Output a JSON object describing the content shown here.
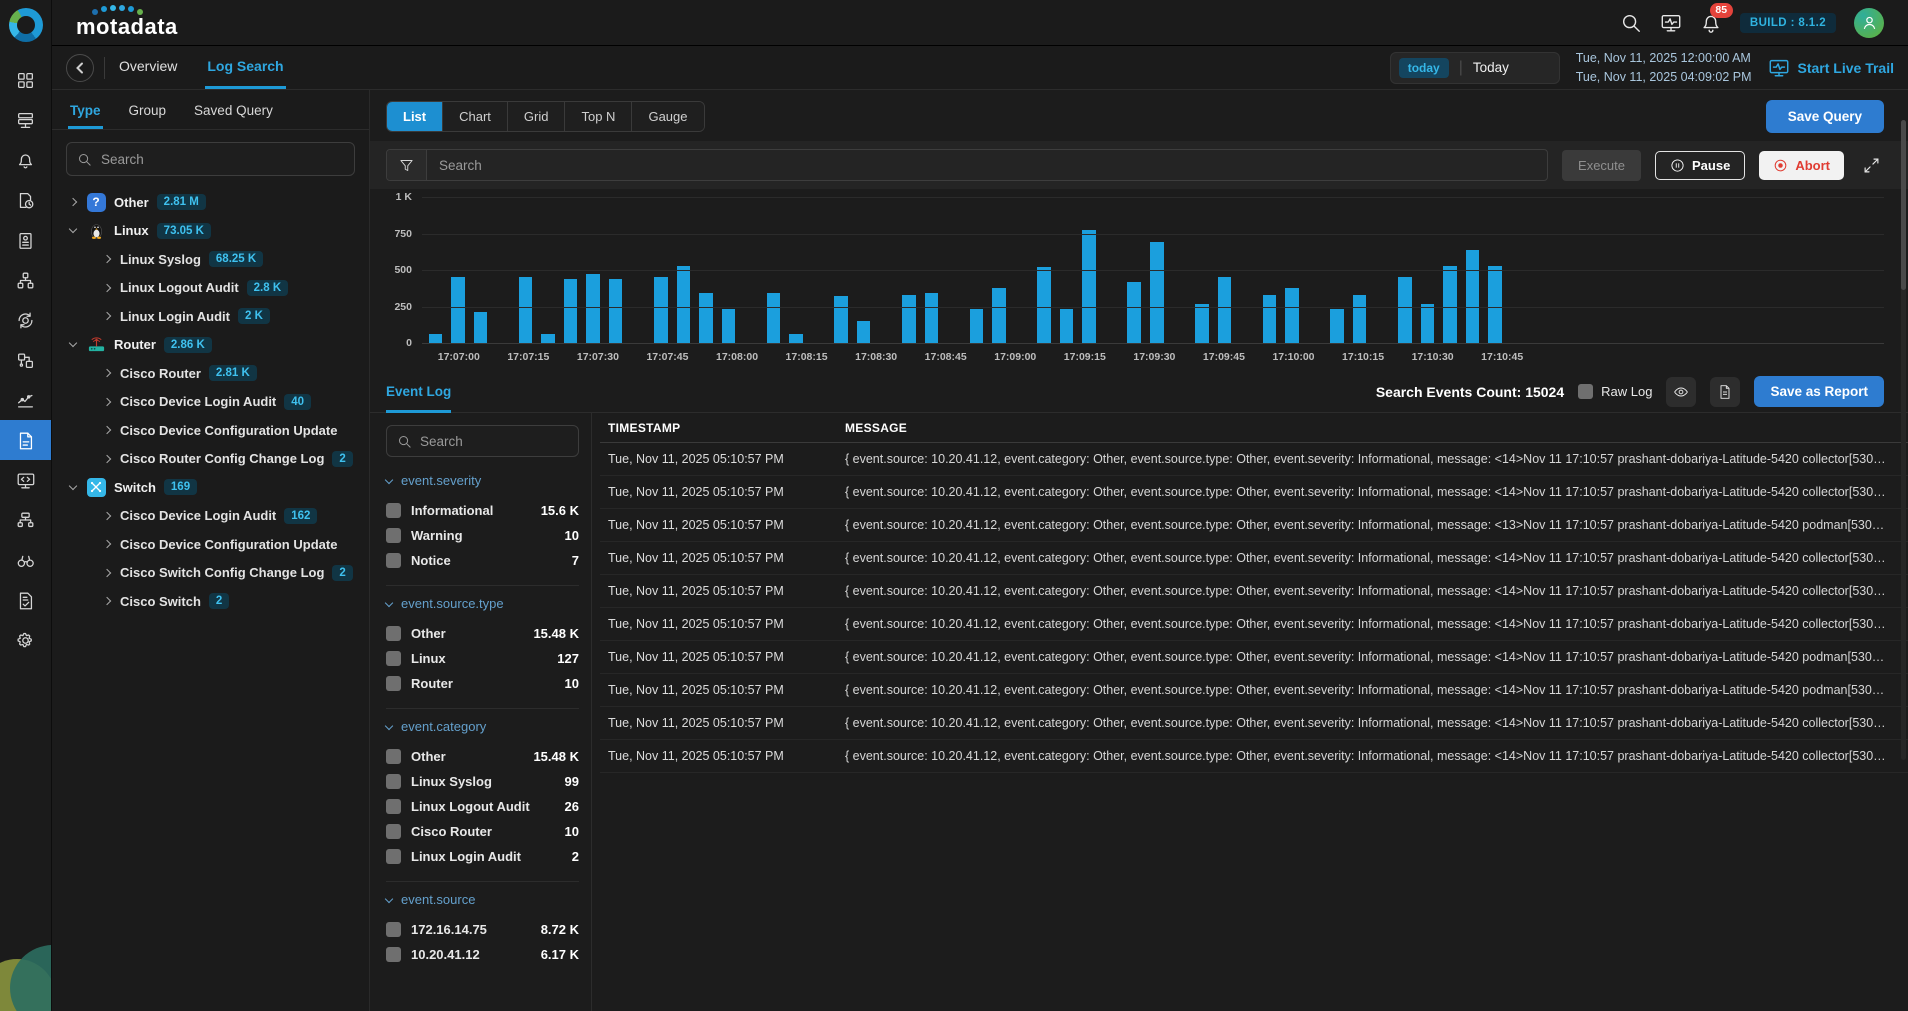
{
  "header": {
    "brand": "motadata",
    "notification_count": "85",
    "build_label": "BUILD : 8.1.2",
    "icons": [
      "search-icon",
      "monitor-pulse-icon",
      "bell-icon",
      "avatar"
    ]
  },
  "subheader": {
    "tabs": [
      {
        "label": "Overview",
        "active": false
      },
      {
        "label": "Log Search",
        "active": true
      }
    ],
    "time_chip": "today",
    "time_label": "Today",
    "date_from": "Tue, Nov 11, 2025 12:00:00 AM",
    "date_to": "Tue, Nov 11, 2025 04:09:02 PM",
    "live_trail_label": "Start Live Trail"
  },
  "sidebar": {
    "icons": [
      "dashboard",
      "infrastructure",
      "alerts",
      "scheduler",
      "reports",
      "topology",
      "automation",
      "integrations",
      "metrics",
      "logs",
      "agent",
      "network",
      "discovery",
      "audit",
      "settings"
    ],
    "active_icon": "logs"
  },
  "left_panel": {
    "tabs": [
      "Type",
      "Group",
      "Saved Query"
    ],
    "active_tab": "Type",
    "search_placeholder": "Search",
    "tree": [
      {
        "label": "Other",
        "count": "2.81 M",
        "icon": "question-icon",
        "level": 0,
        "expanded": false
      },
      {
        "label": "Linux",
        "count": "73.05 K",
        "icon": "linux-icon",
        "level": 0,
        "expanded": true
      },
      {
        "label": "Linux Syslog",
        "count": "68.25 K",
        "level": 1
      },
      {
        "label": "Linux Logout Audit",
        "count": "2.8 K",
        "level": 1
      },
      {
        "label": "Linux Login Audit",
        "count": "2 K",
        "level": 1
      },
      {
        "label": "Router",
        "count": "2.86 K",
        "icon": "router-icon",
        "level": 0,
        "expanded": true
      },
      {
        "label": "Cisco Router",
        "count": "2.81 K",
        "level": 1
      },
      {
        "label": "Cisco Device Login Audit",
        "count": "40",
        "level": 1
      },
      {
        "label": "Cisco Device Configuration Update",
        "count": "",
        "level": 1
      },
      {
        "label": "Cisco Router Config Change Log",
        "count": "2",
        "level": 1
      },
      {
        "label": "Switch",
        "count": "169",
        "icon": "switch-icon",
        "level": 0,
        "expanded": true
      },
      {
        "label": "Cisco Device Login Audit",
        "count": "162",
        "level": 1
      },
      {
        "label": "Cisco Device Configuration Update",
        "count": "",
        "level": 1
      },
      {
        "label": "Cisco Switch Config Change Log",
        "count": "2",
        "level": 1
      },
      {
        "label": "Cisco Switch",
        "count": "2",
        "level": 1
      }
    ]
  },
  "toolbar": {
    "view_tabs": [
      "List",
      "Chart",
      "Grid",
      "Top N",
      "Gauge"
    ],
    "active_view": "List",
    "save_query_label": "Save Query",
    "search_placeholder": "Search",
    "execute_label": "Execute",
    "pause_label": "Pause",
    "abort_label": "Abort"
  },
  "chart_data": {
    "type": "bar",
    "title": "",
    "xlabel": "",
    "ylabel": "",
    "ylim": [
      0,
      1000
    ],
    "yticks": [
      "1 K",
      "750",
      "500",
      "250",
      "0"
    ],
    "bar_color": "#1b9fdd",
    "grid": true,
    "x_tick_labels": [
      "17:07:00",
      "17:07:15",
      "17:07:30",
      "17:07:45",
      "17:08:00",
      "17:08:15",
      "17:08:30",
      "17:08:45",
      "17:09:00",
      "17:09:15",
      "17:09:30",
      "17:09:45",
      "17:10:00",
      "17:10:15",
      "17:10:30",
      "17:10:45"
    ],
    "values": [
      60,
      455,
      215,
      0,
      450,
      60,
      440,
      470,
      440,
      0,
      455,
      525,
      345,
      230,
      0,
      340,
      60,
      0,
      325,
      150,
      0,
      330,
      345,
      0,
      230,
      375,
      0,
      520,
      230,
      775,
      0,
      415,
      690,
      0,
      265,
      455,
      0,
      330,
      380,
      0,
      230,
      330,
      0,
      455,
      270,
      530,
      640,
      525
    ]
  },
  "results": {
    "tab_label": "Event Log",
    "count_label": "Search Events Count:",
    "count_value": "15024",
    "raw_log_label": "Raw Log",
    "save_report_label": "Save as Report",
    "facet_search_placeholder": "Search",
    "facets": [
      {
        "title": "event.severity",
        "items": [
          {
            "label": "Informational",
            "count": "15.6 K"
          },
          {
            "label": "Warning",
            "count": "10"
          },
          {
            "label": "Notice",
            "count": "7"
          }
        ]
      },
      {
        "title": "event.source.type",
        "items": [
          {
            "label": "Other",
            "count": "15.48 K"
          },
          {
            "label": "Linux",
            "count": "127"
          },
          {
            "label": "Router",
            "count": "10"
          }
        ]
      },
      {
        "title": "event.category",
        "items": [
          {
            "label": "Other",
            "count": "15.48 K"
          },
          {
            "label": "Linux Syslog",
            "count": "99"
          },
          {
            "label": "Linux Logout Audit",
            "count": "26"
          },
          {
            "label": "Cisco Router",
            "count": "10"
          },
          {
            "label": "Linux Login Audit",
            "count": "2"
          }
        ]
      },
      {
        "title": "event.source",
        "items": [
          {
            "label": "172.16.14.75",
            "count": "8.72 K"
          },
          {
            "label": "10.20.41.12",
            "count": "6.17 K"
          }
        ]
      }
    ],
    "table": {
      "columns": [
        "TIMESTAMP",
        "MESSAGE"
      ],
      "rows": [
        {
          "timestamp": "Tue, Nov 11, 2025 05:10:57 PM",
          "message": "{ event.source: 10.20.41.12, event.category: Other, event.source.type: Other, event.severity: Informational, message: <14>Nov 11 17:10:57 prashant-dobariya-Latitude-5420 collector[530…"
        },
        {
          "timestamp": "Tue, Nov 11, 2025 05:10:57 PM",
          "message": "{ event.source: 10.20.41.12, event.category: Other, event.source.type: Other, event.severity: Informational, message: <14>Nov 11 17:10:57 prashant-dobariya-Latitude-5420 collector[530…"
        },
        {
          "timestamp": "Tue, Nov 11, 2025 05:10:57 PM",
          "message": "{ event.source: 10.20.41.12, event.category: Other, event.source.type: Other, event.severity: Informational, message: <13>Nov 11 17:10:57 prashant-dobariya-Latitude-5420 podman[530…"
        },
        {
          "timestamp": "Tue, Nov 11, 2025 05:10:57 PM",
          "message": "{ event.source: 10.20.41.12, event.category: Other, event.source.type: Other, event.severity: Informational, message: <14>Nov 11 17:10:57 prashant-dobariya-Latitude-5420 collector[530…"
        },
        {
          "timestamp": "Tue, Nov 11, 2025 05:10:57 PM",
          "message": "{ event.source: 10.20.41.12, event.category: Other, event.source.type: Other, event.severity: Informational, message: <14>Nov 11 17:10:57 prashant-dobariya-Latitude-5420 collector[530…"
        },
        {
          "timestamp": "Tue, Nov 11, 2025 05:10:57 PM",
          "message": "{ event.source: 10.20.41.12, event.category: Other, event.source.type: Other, event.severity: Informational, message: <14>Nov 11 17:10:57 prashant-dobariya-Latitude-5420 collector[530…"
        },
        {
          "timestamp": "Tue, Nov 11, 2025 05:10:57 PM",
          "message": "{ event.source: 10.20.41.12, event.category: Other, event.source.type: Other, event.severity: Informational, message: <14>Nov 11 17:10:57 prashant-dobariya-Latitude-5420 podman[530…"
        },
        {
          "timestamp": "Tue, Nov 11, 2025 05:10:57 PM",
          "message": "{ event.source: 10.20.41.12, event.category: Other, event.source.type: Other, event.severity: Informational, message: <14>Nov 11 17:10:57 prashant-dobariya-Latitude-5420 podman[530…"
        },
        {
          "timestamp": "Tue, Nov 11, 2025 05:10:57 PM",
          "message": "{ event.source: 10.20.41.12, event.category: Other, event.source.type: Other, event.severity: Informational, message: <14>Nov 11 17:10:57 prashant-dobariya-Latitude-5420 collector[530…"
        },
        {
          "timestamp": "Tue, Nov 11, 2025 05:10:57 PM",
          "message": "{ event.source: 10.20.41.12, event.category: Other, event.source.type: Other, event.severity: Informational, message: <14>Nov 11 17:10:57 prashant-dobariya-Latitude-5420 collector[530…"
        }
      ]
    }
  }
}
